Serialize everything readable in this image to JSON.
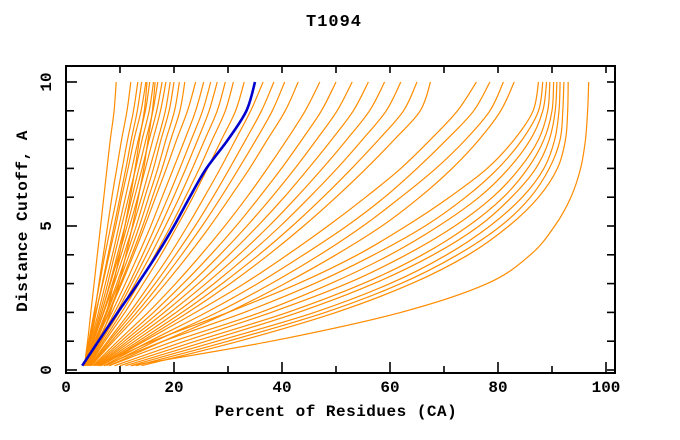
{
  "page": {
    "background": "#ffffff"
  },
  "chart_data": {
    "type": "line",
    "title": "T1094",
    "xlabel": "Percent of Residues (CA)",
    "ylabel": "Distance Cutoff, A",
    "xlim": [
      0,
      100
    ],
    "ylim": [
      0,
      10
    ],
    "grid": false,
    "legend_position": "none",
    "x_major_ticks": [
      0,
      20,
      40,
      60,
      80,
      100
    ],
    "x_minor_ticks": [
      10,
      30,
      50,
      70,
      90
    ],
    "y_major_ticks": [
      0,
      5,
      10
    ],
    "y_minor_ticks": [
      1,
      2,
      3,
      4,
      6,
      7,
      8,
      9
    ],
    "model_color": "#ff8c00",
    "highlight_color": "#0000cd",
    "axis_color": "#000000",
    "cutoffs": [
      0.15,
      1,
      2,
      3,
      4,
      5,
      6,
      7,
      8,
      9,
      10
    ],
    "models": [
      [
        3.4,
        4.0,
        4.6,
        5.2,
        5.8,
        6.4,
        7.0,
        7.6,
        8.2,
        8.9,
        9.3
      ],
      [
        3.4,
        4.2,
        5.2,
        6.2,
        7.2,
        8.3,
        9.4,
        10.4,
        11.4,
        12.5,
        13.3
      ],
      [
        3.5,
        4.5,
        5.6,
        6.7,
        7.8,
        8.9,
        10.0,
        11.1,
        12.1,
        13.2,
        14.0
      ],
      [
        3.4,
        4.3,
        5.5,
        6.8,
        8.0,
        9.2,
        10.3,
        11.5,
        12.6,
        13.9,
        14.8
      ],
      [
        3.5,
        4.6,
        6.0,
        7.3,
        8.6,
        9.8,
        11.0,
        12.2,
        13.4,
        14.7,
        15.5
      ],
      [
        3.5,
        4.8,
        6.3,
        7.7,
        9.0,
        10.3,
        11.6,
        12.9,
        14.1,
        15.4,
        16.2
      ],
      [
        3.6,
        5.0,
        6.6,
        8.1,
        9.5,
        10.9,
        12.2,
        13.5,
        14.8,
        16.1,
        17.0
      ],
      [
        3.5,
        4.9,
        6.6,
        8.2,
        9.8,
        11.3,
        12.7,
        14.1,
        15.4,
        16.8,
        17.8
      ],
      [
        3.6,
        5.1,
        6.9,
        8.6,
        10.2,
        11.8,
        13.3,
        14.7,
        16.1,
        17.5,
        18.5
      ],
      [
        3.5,
        5.0,
        7.0,
        8.9,
        10.7,
        12.4,
        14.0,
        15.5,
        17.0,
        18.4,
        19.3
      ],
      [
        3.6,
        5.3,
        7.4,
        9.4,
        11.2,
        13.0,
        14.6,
        16.2,
        17.6,
        19.1,
        20.0
      ],
      [
        3.6,
        5.4,
        7.6,
        9.7,
        11.7,
        13.6,
        15.3,
        17.0,
        18.5,
        20.1,
        21.0
      ],
      [
        3.7,
        5.6,
        7.9,
        10.1,
        12.2,
        14.2,
        16.0,
        17.8,
        19.4,
        21.1,
        22.0
      ],
      [
        3.4,
        4.4,
        5.3,
        6.1,
        6.9,
        7.7,
        8.5,
        9.4,
        10.3,
        11.3,
        12.0
      ],
      [
        4.0,
        5.8,
        7.5,
        8.8,
        9.9,
        10.9,
        11.9,
        12.8,
        13.6,
        14.5,
        15.0
      ],
      [
        4.2,
        6.2,
        8.2,
        9.8,
        11.1,
        12.3,
        13.4,
        14.4,
        15.2,
        16.0,
        16.5
      ],
      [
        3.8,
        5.6,
        8.0,
        10.3,
        12.5,
        14.6,
        16.6,
        18.6,
        20.5,
        22.5,
        24.0
      ],
      [
        3.9,
        5.9,
        8.5,
        11.0,
        13.4,
        15.7,
        17.8,
        19.9,
        22.0,
        24.0,
        25.5
      ],
      [
        4.0,
        6.2,
        9.0,
        11.7,
        14.2,
        16.6,
        18.9,
        21.1,
        23.2,
        25.3,
        26.8
      ],
      [
        4.0,
        6.4,
        9.4,
        12.2,
        14.9,
        17.5,
        19.9,
        22.2,
        24.4,
        26.5,
        28.0
      ],
      [
        4.1,
        6.6,
        9.8,
        12.8,
        15.7,
        18.4,
        21.0,
        23.4,
        25.7,
        28.0,
        29.5
      ],
      [
        4.2,
        6.9,
        10.3,
        13.5,
        16.5,
        19.4,
        22.1,
        24.7,
        27.1,
        29.5,
        31.0
      ],
      [
        4.3,
        7.2,
        10.9,
        14.3,
        17.6,
        20.6,
        23.5,
        26.2,
        28.8,
        31.4,
        33.0
      ],
      [
        4.4,
        7.7,
        11.8,
        15.6,
        19.2,
        22.5,
        25.6,
        28.6,
        31.4,
        34.2,
        36.5
      ],
      [
        4.5,
        8.0,
        12.4,
        16.5,
        20.3,
        23.9,
        27.2,
        30.3,
        33.3,
        36.2,
        38.5
      ],
      [
        4.6,
        8.4,
        13.1,
        17.4,
        21.4,
        25.2,
        28.7,
        32.0,
        35.2,
        38.2,
        40.5
      ],
      [
        4.7,
        8.8,
        13.8,
        18.4,
        22.7,
        26.7,
        30.4,
        34.0,
        37.3,
        40.6,
        43.0
      ],
      [
        5.0,
        9.6,
        15.2,
        20.3,
        25.0,
        29.4,
        33.5,
        37.3,
        40.9,
        44.3,
        47.0
      ],
      [
        5.2,
        10.2,
        16.2,
        21.7,
        26.8,
        31.5,
        35.8,
        39.9,
        43.7,
        47.3,
        50.0
      ],
      [
        5.4,
        10.8,
        17.2,
        23.1,
        28.5,
        33.5,
        38.1,
        42.4,
        46.4,
        50.2,
        53.0
      ],
      [
        5.6,
        11.4,
        18.2,
        24.5,
        30.2,
        35.5,
        40.4,
        44.9,
        49.2,
        53.2,
        56.0
      ],
      [
        5.8,
        12.0,
        19.3,
        25.9,
        32.0,
        37.6,
        42.7,
        47.5,
        52.0,
        56.2,
        59.0
      ],
      [
        6.0,
        12.7,
        20.4,
        27.4,
        33.8,
        39.7,
        45.1,
        50.2,
        54.9,
        59.3,
        62.0
      ],
      [
        6.2,
        13.4,
        21.5,
        28.9,
        35.7,
        41.9,
        47.6,
        52.9,
        57.9,
        62.5,
        65.0
      ],
      [
        6.4,
        14.0,
        22.6,
        30.4,
        37.5,
        44.0,
        50.0,
        55.6,
        60.8,
        65.6,
        67.5
      ],
      [
        6.5,
        14.5,
        24.0,
        33.0,
        41.0,
        48.5,
        55.5,
        62.0,
        67.5,
        72.5,
        76.0
      ],
      [
        7.0,
        15.5,
        26.0,
        35.5,
        44.0,
        52.0,
        59.0,
        65.0,
        70.5,
        75.5,
        78.5
      ],
      [
        7.5,
        16.5,
        28.0,
        38.0,
        47.0,
        55.0,
        62.0,
        68.5,
        74.0,
        78.5,
        81.0
      ],
      [
        8.0,
        18.0,
        30.0,
        40.5,
        50.0,
        58.5,
        65.5,
        71.5,
        76.5,
        80.5,
        83.0
      ],
      [
        6.0,
        16.0,
        30.0,
        43.0,
        54.0,
        63.0,
        71.0,
        78.0,
        83.0,
        86.5,
        87.5
      ],
      [
        7.0,
        18.0,
        33.0,
        46.0,
        57.0,
        66.5,
        74.0,
        80.0,
        84.5,
        87.5,
        88.3
      ],
      [
        8.0,
        20.0,
        36.0,
        49.0,
        60.0,
        69.0,
        76.5,
        82.0,
        86.0,
        88.3,
        89.0
      ],
      [
        9.0,
        22.0,
        38.0,
        52.0,
        63.0,
        72.0,
        79.0,
        84.0,
        87.5,
        89.2,
        89.6
      ],
      [
        10.0,
        24.0,
        41.0,
        55.0,
        66.0,
        74.5,
        81.0,
        85.5,
        88.5,
        90.0,
        90.3
      ],
      [
        11.0,
        26.0,
        43.0,
        57.0,
        68.0,
        76.5,
        82.5,
        87.0,
        89.5,
        90.6,
        90.9
      ],
      [
        12.0,
        28.0,
        46.0,
        60.0,
        70.5,
        78.5,
        84.5,
        88.5,
        90.5,
        91.3,
        91.5
      ],
      [
        13.0,
        30.0,
        48.0,
        62.0,
        72.5,
        80.5,
        86.0,
        89.5,
        91.5,
        92.0,
        92.2
      ],
      [
        14.0,
        32.0,
        50.0,
        64.0,
        74.5,
        82.0,
        87.5,
        91.0,
        92.5,
        92.9,
        93.0
      ],
      [
        12.0,
        38.0,
        62.0,
        78.0,
        86.0,
        90.5,
        93.5,
        95.3,
        96.2,
        96.6,
        96.8
      ]
    ],
    "highlight": [
      3.0,
      6.0,
      9.6,
      13.3,
      16.8,
      20.0,
      22.9,
      26.0,
      30.0,
      33.4,
      35.0
    ]
  }
}
